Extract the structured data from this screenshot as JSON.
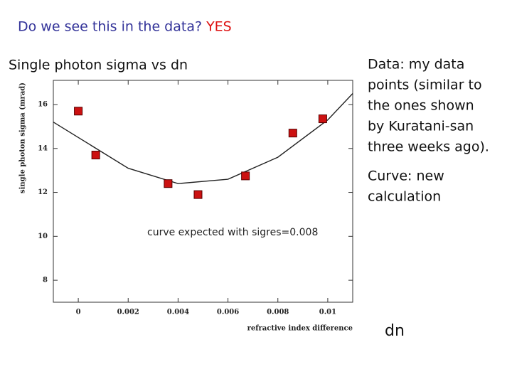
{
  "header": {
    "question": "Do we see this in the data?",
    "answer": "YES"
  },
  "subtitle": "Single photon sigma vs dn",
  "notes": [
    {
      "lines": [
        "Data: my data",
        "points (similar to",
        "the ones shown",
        "by Kuratani-san",
        "three weeks ago)."
      ]
    },
    {
      "lines": [
        "Curve: new",
        "calculation"
      ]
    }
  ],
  "x_caption": "dn",
  "chart_data": {
    "type": "scatter",
    "ylabel": "single photon sigma (mrad)",
    "xlabel": "refractive index difference",
    "annotation": "curve expected with sigres=0.008",
    "xlim": [
      -0.001,
      0.011
    ],
    "ylim": [
      7,
      17.1
    ],
    "xticks": [
      0,
      0.002,
      0.004,
      0.006,
      0.008,
      0.01
    ],
    "yticks": [
      8,
      10,
      12,
      14,
      16
    ],
    "points": {
      "color": "#cc1111",
      "x": [
        0,
        0.0007,
        0.0036,
        0.0048,
        0.0067,
        0.0086,
        0.0098
      ],
      "values": [
        15.7,
        13.7,
        12.4,
        11.9,
        12.75,
        14.7,
        15.35
      ]
    },
    "curve": {
      "color": "#222222",
      "x": [
        -0.001,
        0,
        0.002,
        0.004,
        0.006,
        0.008,
        0.01,
        0.011
      ],
      "values": [
        15.2,
        14.5,
        13.1,
        12.4,
        12.6,
        13.6,
        15.3,
        16.5
      ]
    }
  }
}
